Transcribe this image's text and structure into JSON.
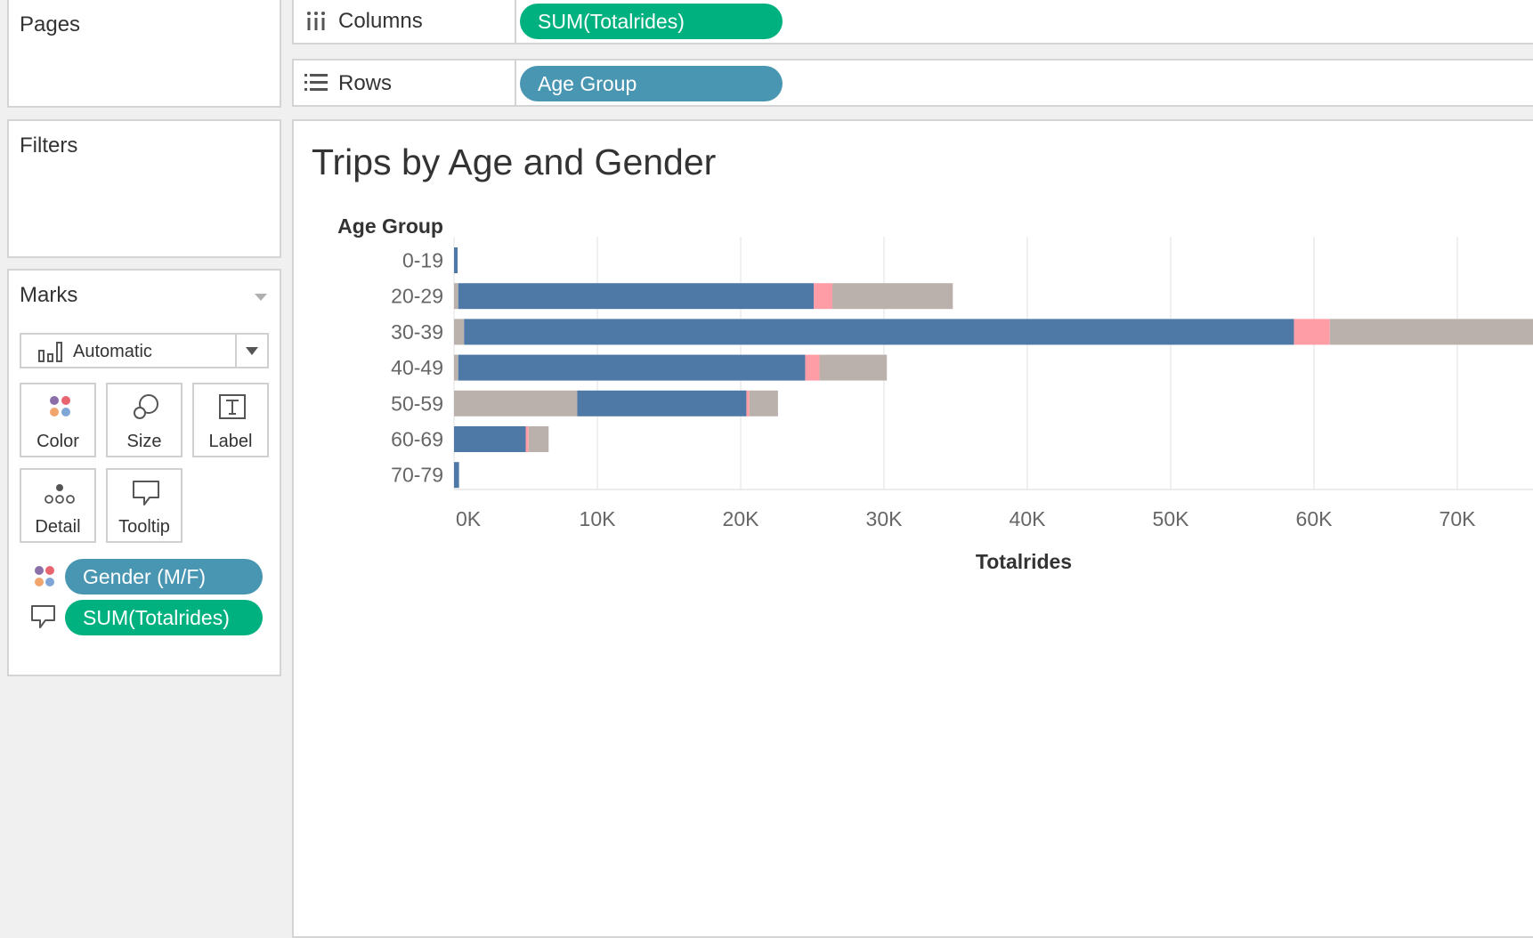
{
  "pages": {
    "title": "Pages"
  },
  "filters": {
    "title": "Filters"
  },
  "marks": {
    "title": "Marks",
    "mark_type": "Automatic",
    "buttons": {
      "color": "Color",
      "size": "Size",
      "label": "Label",
      "detail": "Detail",
      "tooltip": "Tooltip"
    },
    "fields": [
      {
        "label": "Gender (M/F)",
        "icon": "color-dots-icon",
        "color": "#4996b2"
      },
      {
        "label": "SUM(Totalrides)",
        "icon": "tooltip-icon",
        "color": "#00b180"
      }
    ]
  },
  "shelves": {
    "columns": {
      "label": "Columns",
      "pill": "SUM(Totalrides)"
    },
    "rows": {
      "label": "Rows",
      "pill": "Age Group"
    }
  },
  "colors": {
    "male": "#4e79a7",
    "female": "#ff9da7",
    "unknown": "#bab0ac",
    "measure_pill": "#00b180",
    "dimension_pill": "#4996b2"
  },
  "chart_data": {
    "type": "bar",
    "orientation": "horizontal",
    "stacked": true,
    "title": "Trips by Age and Gender",
    "ylabel": "Age Group",
    "xlabel": "Totalrides",
    "categories": [
      "0-19",
      "20-29",
      "30-39",
      "40-49",
      "50-59",
      "60-69",
      "70-79"
    ],
    "xlim": [
      0,
      75000
    ],
    "xticks": [
      0,
      10000,
      20000,
      30000,
      40000,
      50000,
      60000,
      70000
    ],
    "xtick_labels": [
      "0K",
      "10K",
      "20K",
      "30K",
      "40K",
      "50K",
      "60K",
      "70K"
    ],
    "grid": true,
    "segments": [
      [
        {
          "color": "#4e79a7",
          "value": 250
        }
      ],
      [
        {
          "color": "#bab0ac",
          "value": 300
        },
        {
          "color": "#4e79a7",
          "value": 24800
        },
        {
          "color": "#ff9da7",
          "value": 1300
        },
        {
          "color": "#bab0ac",
          "value": 8400
        }
      ],
      [
        {
          "color": "#bab0ac",
          "value": 700
        },
        {
          "color": "#4e79a7",
          "value": 57900
        },
        {
          "color": "#ff9da7",
          "value": 2500
        },
        {
          "color": "#bab0ac",
          "value": 14400
        }
      ],
      [
        {
          "color": "#bab0ac",
          "value": 300
        },
        {
          "color": "#4e79a7",
          "value": 24200
        },
        {
          "color": "#ff9da7",
          "value": 1000
        },
        {
          "color": "#bab0ac",
          "value": 4700
        }
      ],
      [
        {
          "color": "#bab0ac",
          "value": 8600
        },
        {
          "color": "#4e79a7",
          "value": 11800
        },
        {
          "color": "#ff9da7",
          "value": 200
        },
        {
          "color": "#bab0ac",
          "value": 2000
        }
      ],
      [
        {
          "color": "#4e79a7",
          "value": 5000
        },
        {
          "color": "#ff9da7",
          "value": 200
        },
        {
          "color": "#bab0ac",
          "value": 1400
        }
      ],
      [
        {
          "color": "#4e79a7",
          "value": 350
        }
      ]
    ]
  }
}
